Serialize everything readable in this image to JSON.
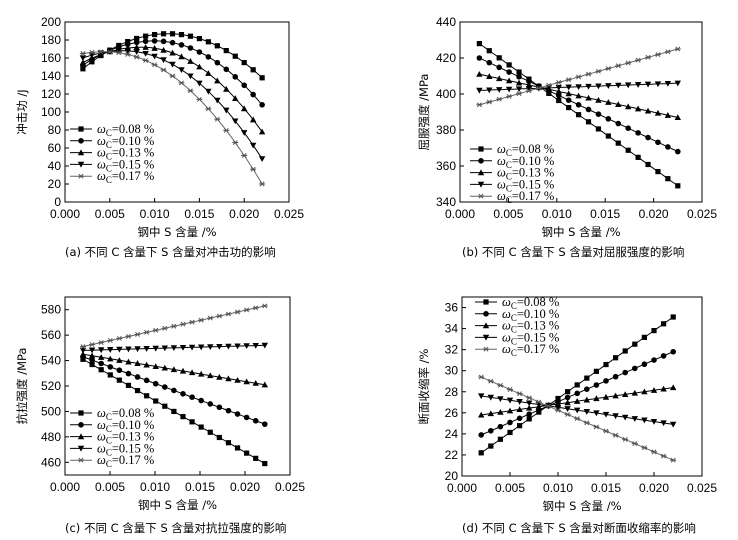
{
  "chart_data": [
    {
      "type": "line",
      "title": "",
      "caption": "(a) 不同 C 含量下 S 含量对冲击功的影响",
      "xlabel": "钢中 S 含量 /%",
      "ylabel": "冲击功 /J",
      "xlim": [
        0,
        0.025
      ],
      "ylim": [
        0,
        200
      ],
      "xticks": [
        "0.000",
        "0.005",
        "0.010",
        "0.015",
        "0.020",
        "0.025"
      ],
      "yticks": [
        "0",
        "20",
        "40",
        "60",
        "80",
        "100",
        "120",
        "140",
        "160",
        "180",
        "200"
      ],
      "legend_position": "lower-left",
      "series": [
        {
          "name": "ω_C=0.08 %",
          "prefix": "ω",
          "sub": "C",
          "suffix": "=0.08 %",
          "marker": "square",
          "x0": 0.002,
          "x1": 0.022,
          "y0": 148,
          "y1": 138,
          "peak_x": 0.0115,
          "peak_y": 187
        },
        {
          "name": "ω_C=0.10 %",
          "prefix": "ω",
          "sub": "C",
          "suffix": "=0.10 %",
          "marker": "circle",
          "x0": 0.002,
          "x1": 0.022,
          "y0": 152,
          "y1": 108,
          "peak_x": 0.01,
          "peak_y": 179
        },
        {
          "name": "ω_C=0.13 %",
          "prefix": "ω",
          "sub": "C",
          "suffix": "=0.13 %",
          "marker": "triangle",
          "x0": 0.002,
          "x1": 0.022,
          "y0": 155,
          "y1": 78,
          "peak_x": 0.0085,
          "peak_y": 172
        },
        {
          "name": "ω_C=0.15 %",
          "prefix": "ω",
          "sub": "C",
          "suffix": "=0.15 %",
          "marker": "tridown",
          "x0": 0.002,
          "x1": 0.022,
          "y0": 160,
          "y1": 48,
          "peak_x": 0.0065,
          "peak_y": 168
        },
        {
          "name": "ω_C=0.17 %",
          "prefix": "ω",
          "sub": "C",
          "suffix": "=0.17 %",
          "marker": "star",
          "x0": 0.002,
          "x1": 0.022,
          "y0": 165,
          "y1": 20,
          "peak_x": 0.0045,
          "peak_y": 167
        }
      ]
    },
    {
      "type": "line",
      "title": "",
      "caption": "(b) 不同 C 含量下 S 含量对屈服强度的影响",
      "xlabel": "钢中 S 含量 /%",
      "ylabel": "屈服强度 /MPa",
      "xlim": [
        0,
        0.025
      ],
      "ylim": [
        340,
        440
      ],
      "xticks": [
        "0.000",
        "0.005",
        "0.010",
        "0.015",
        "0.020",
        "0.025"
      ],
      "yticks": [
        "340",
        "360",
        "380",
        "400",
        "420",
        "440"
      ],
      "legend_position": "lower-left",
      "series": [
        {
          "name": "ω_C=0.08 %",
          "prefix": "ω",
          "sub": "C",
          "suffix": "=0.08 %",
          "marker": "square",
          "x0": 0.002,
          "x1": 0.0225,
          "y0": 428,
          "y1": 349
        },
        {
          "name": "ω_C=0.10 %",
          "prefix": "ω",
          "sub": "C",
          "suffix": "=0.10 %",
          "marker": "circle",
          "x0": 0.002,
          "x1": 0.0225,
          "y0": 420,
          "y1": 368
        },
        {
          "name": "ω_C=0.13 %",
          "prefix": "ω",
          "sub": "C",
          "suffix": "=0.13 %",
          "marker": "triangle",
          "x0": 0.002,
          "x1": 0.0225,
          "y0": 411,
          "y1": 387
        },
        {
          "name": "ω_C=0.15 %",
          "prefix": "ω",
          "sub": "C",
          "suffix": "=0.15 %",
          "marker": "tridown",
          "x0": 0.002,
          "x1": 0.0225,
          "y0": 402,
          "y1": 406
        },
        {
          "name": "ω_C=0.17 %",
          "prefix": "ω",
          "sub": "C",
          "suffix": "=0.17 %",
          "marker": "star",
          "x0": 0.002,
          "x1": 0.0225,
          "y0": 394,
          "y1": 425
        }
      ]
    },
    {
      "type": "line",
      "title": "",
      "caption": "(c) 不同 C 含量下 S 含量对抗拉强度的影响",
      "xlabel": "钢中 S 含量 /%",
      "ylabel": "抗拉强度 /MPa",
      "xlim": [
        0,
        0.025
      ],
      "ylim": [
        450,
        590
      ],
      "xticks": [
        "0.000",
        "0.005",
        "0.010",
        "0.015",
        "0.020",
        "0.025"
      ],
      "yticks": [
        "460",
        "480",
        "500",
        "520",
        "540",
        "560",
        "580"
      ],
      "legend_position": "lower-left",
      "series": [
        {
          "name": "ω_C=0.08 %",
          "prefix": "ω",
          "sub": "C",
          "suffix": "=0.08 %",
          "marker": "square",
          "x0": 0.002,
          "x1": 0.0222,
          "y0": 541,
          "y1": 459
        },
        {
          "name": "ω_C=0.10 %",
          "prefix": "ω",
          "sub": "C",
          "suffix": "=0.10 %",
          "marker": "circle",
          "x0": 0.002,
          "x1": 0.0222,
          "y0": 543,
          "y1": 490
        },
        {
          "name": "ω_C=0.13 %",
          "prefix": "ω",
          "sub": "C",
          "suffix": "=0.13 %",
          "marker": "triangle",
          "x0": 0.002,
          "x1": 0.0222,
          "y0": 545,
          "y1": 521
        },
        {
          "name": "ω_C=0.15 %",
          "prefix": "ω",
          "sub": "C",
          "suffix": "=0.15 %",
          "marker": "tridown",
          "x0": 0.002,
          "x1": 0.0222,
          "y0": 548,
          "y1": 552
        },
        {
          "name": "ω_C=0.17 %",
          "prefix": "ω",
          "sub": "C",
          "suffix": "=0.17 %",
          "marker": "star",
          "x0": 0.002,
          "x1": 0.0222,
          "y0": 551,
          "y1": 583
        }
      ]
    },
    {
      "type": "line",
      "title": "",
      "caption": "(d) 不同 C 含量下 S 含量对断面收缩率的影响",
      "xlabel": "钢中 S 含量 /%",
      "ylabel": "断面收缩率 /%",
      "xlim": [
        0,
        0.025
      ],
      "ylim": [
        20,
        37
      ],
      "xticks": [
        "0.000",
        "0.005",
        "0.010",
        "0.015",
        "0.020",
        "0.025"
      ],
      "yticks": [
        "20",
        "22",
        "24",
        "26",
        "28",
        "30",
        "32",
        "34",
        "36"
      ],
      "legend_position": "top-left",
      "series": [
        {
          "name": "ω_C=0.08 %",
          "prefix": "ω",
          "sub": "C",
          "suffix": "=0.08 %",
          "marker": "square",
          "x0": 0.002,
          "x1": 0.022,
          "y0": 22.2,
          "y1": 35.1
        },
        {
          "name": "ω_C=0.10 %",
          "prefix": "ω",
          "sub": "C",
          "suffix": "=0.10 %",
          "marker": "circle",
          "x0": 0.002,
          "x1": 0.022,
          "y0": 23.9,
          "y1": 31.8
        },
        {
          "name": "ω_C=0.13 %",
          "prefix": "ω",
          "sub": "C",
          "suffix": "=0.13 %",
          "marker": "triangle",
          "x0": 0.002,
          "x1": 0.022,
          "y0": 25.8,
          "y1": 28.4
        },
        {
          "name": "ω_C=0.15 %",
          "prefix": "ω",
          "sub": "C",
          "suffix": "=0.15 %",
          "marker": "tridown",
          "x0": 0.002,
          "x1": 0.022,
          "y0": 27.6,
          "y1": 24.9
        },
        {
          "name": "ω_C=0.17 %",
          "prefix": "ω",
          "sub": "C",
          "suffix": "=0.17 %",
          "marker": "star",
          "x0": 0.002,
          "x1": 0.022,
          "y0": 29.4,
          "y1": 21.5
        }
      ]
    }
  ]
}
